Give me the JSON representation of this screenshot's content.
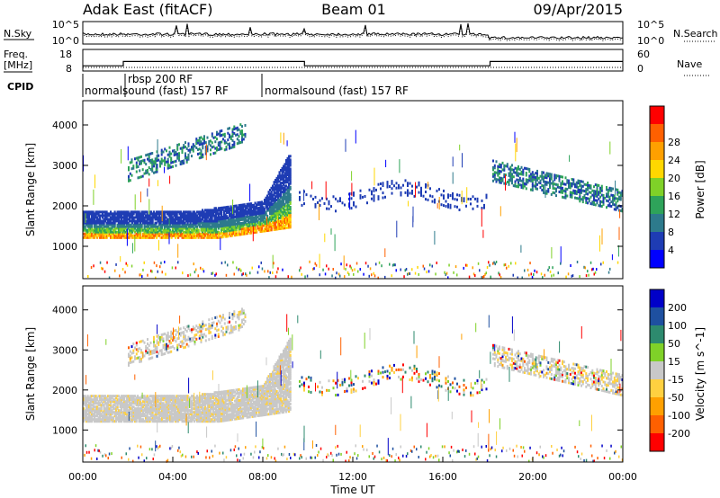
{
  "header": {
    "station": "Adak East (fitACF)",
    "beam": "Beam 01",
    "date": "09/Apr/2015"
  },
  "chart_data": [
    {
      "type": "line",
      "panel": "noise",
      "left_label": "N.Sky",
      "right_label": "N.Search",
      "left_ticks": [
        "10^5",
        "10^0"
      ],
      "right_ticks": [
        "10^5",
        "10^0"
      ]
    },
    {
      "type": "line",
      "panel": "frequency",
      "left_label_lines": [
        "Freq.",
        "[MHz]"
      ],
      "right_label": "Nave",
      "left_ticks": [
        18,
        8
      ],
      "right_ticks": [
        60,
        0
      ],
      "freq_segments": [
        {
          "x0": 0.0,
          "x1": 1.8,
          "y": 10.4
        },
        {
          "x0": 1.8,
          "x1": 9.85,
          "y": 12.4
        },
        {
          "x0": 9.85,
          "x1": 18.1,
          "y": 10.4
        },
        {
          "x0": 18.1,
          "x1": 24.0,
          "y": 12.4
        }
      ]
    },
    {
      "type": "table",
      "panel": "cpid",
      "label": "CPID",
      "segments": [
        {
          "start": 0.0,
          "end": 1.8,
          "text": "normalsound (fast) 157 RF"
        },
        {
          "start": 1.8,
          "end": 7.8,
          "text": "rbsp 200 RF"
        },
        {
          "start": 7.8,
          "end": 24.0,
          "text": "normalsound (fast) 157 RF"
        }
      ]
    },
    {
      "type": "heatmap",
      "panel": "power",
      "ylabel": "Slant Range [km]",
      "ylim": [
        200,
        4600
      ],
      "yticks": [
        1000,
        2000,
        3000,
        4000
      ],
      "colorbar_label": "Power [dB]",
      "colorbar_ticks": [
        4,
        8,
        12,
        16,
        20,
        24,
        28
      ],
      "colors": [
        "#0000ff",
        "#1e3cb4",
        "#2d7a8c",
        "#2ea35a",
        "#7fd128",
        "#ffd700",
        "#ffa000",
        "#ff6000",
        "#ff0000"
      ]
    },
    {
      "type": "heatmap",
      "panel": "velocity",
      "ylabel": "Slant Range [km]",
      "ylim": [
        200,
        4600
      ],
      "yticks": [
        1000,
        2000,
        3000,
        4000
      ],
      "colorbar_label": "Velocity [m s^-1]",
      "colorbar_ticks": [
        200,
        100,
        50,
        15,
        -15,
        -50,
        -100,
        -200
      ],
      "colors": [
        "#0000c8",
        "#1e50a0",
        "#2d8a6e",
        "#7fd128",
        "#c8c8c8",
        "#ffd040",
        "#ffa000",
        "#ff6000",
        "#ff0000"
      ],
      "xlabel": "Time UT",
      "xticks": [
        "00:00",
        "04:00",
        "08:00",
        "12:00",
        "16:00",
        "20:00",
        "00:00"
      ],
      "xlim": [
        0,
        24
      ]
    }
  ]
}
